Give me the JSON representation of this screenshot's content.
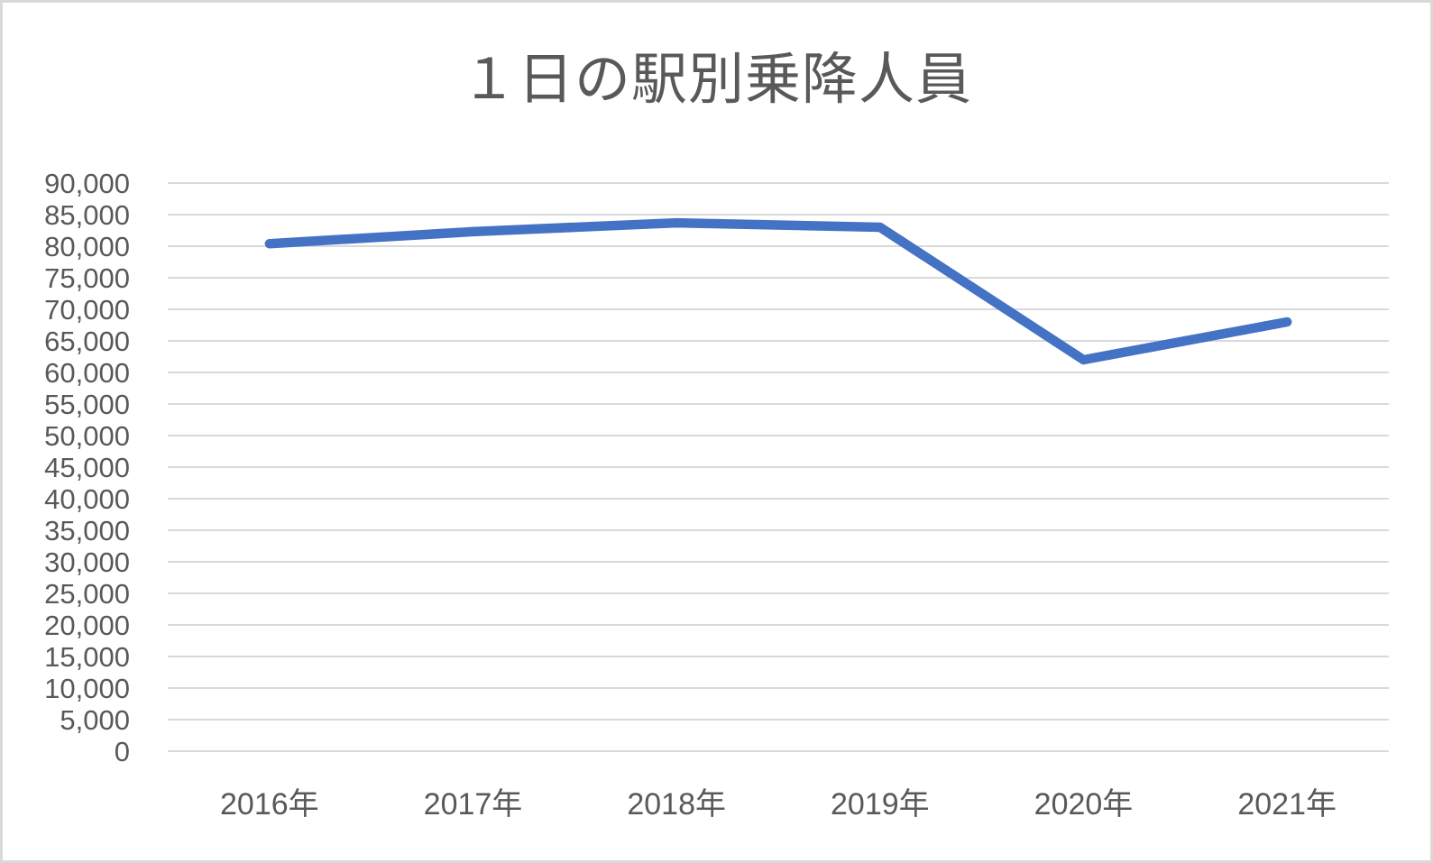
{
  "chart": {
    "colors": {
      "line": "#4472C4",
      "gridline": "#D9D9D9",
      "text": "#595959",
      "background": "#FFFFFF",
      "border": "#D9D9D9"
    }
  },
  "chart_data": {
    "type": "line",
    "title": "１日の駅別乗降人員",
    "categories": [
      "2016年",
      "2017年",
      "2018年",
      "2019年",
      "2020年",
      "2021年"
    ],
    "values": [
      80400,
      82300,
      83700,
      83000,
      62000,
      68000
    ],
    "xlabel": "",
    "ylabel": "",
    "ylim": [
      0,
      90000
    ],
    "ytick_interval": 5000,
    "ytick_labels": [
      "90,000",
      "85,000",
      "80,000",
      "75,000",
      "70,000",
      "65,000",
      "60,000",
      "55,000",
      "50,000",
      "45,000",
      "40,000",
      "35,000",
      "30,000",
      "25,000",
      "20,000",
      "15,000",
      "10,000",
      "5,000",
      "0"
    ],
    "grid": true,
    "legend": "none"
  }
}
